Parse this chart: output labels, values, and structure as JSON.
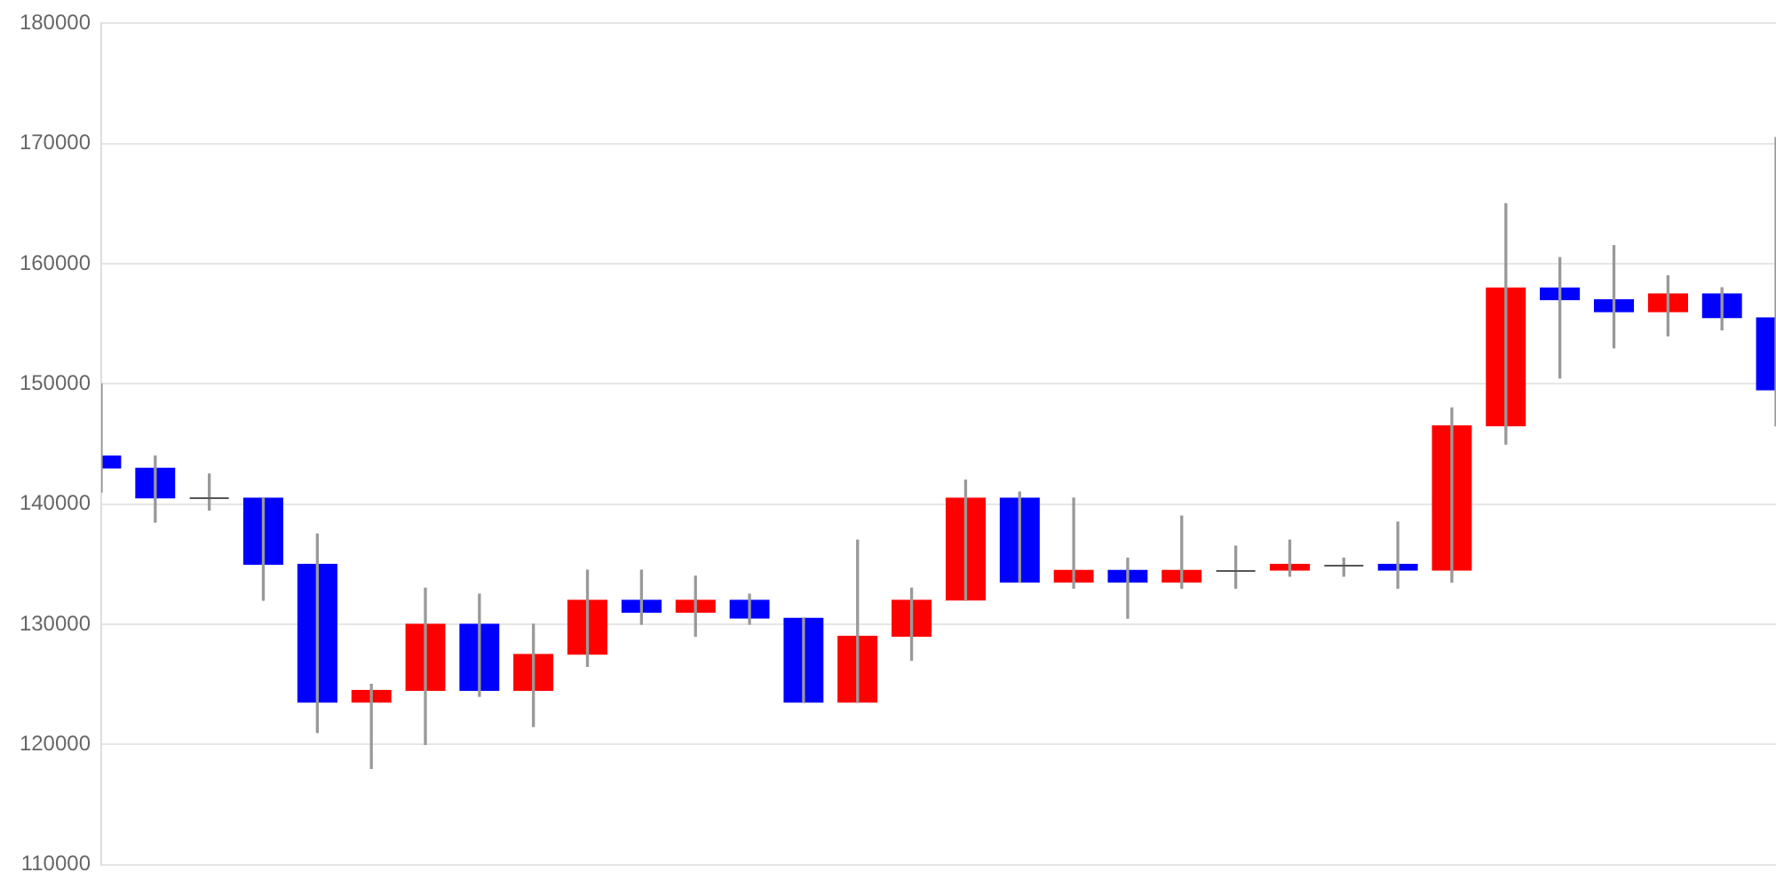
{
  "chart_data": {
    "type": "candlestick",
    "categories": [
      null,
      null,
      null,
      null,
      null,
      null,
      null,
      null,
      null,
      null,
      null,
      null,
      null,
      null,
      null,
      null,
      null,
      null,
      null,
      null,
      null,
      null,
      null,
      null,
      null,
      null,
      null,
      null,
      null,
      null,
      null,
      null
    ],
    "ohlc": [
      [
        144000,
        150000,
        141000,
        143000
      ],
      [
        143000,
        144000,
        138500,
        140500
      ],
      [
        140500,
        142500,
        139500,
        140500
      ],
      [
        140500,
        140500,
        132000,
        135000
      ],
      [
        135000,
        137500,
        121000,
        123500
      ],
      [
        123500,
        125000,
        118000,
        124500
      ],
      [
        124500,
        133000,
        120000,
        130000
      ],
      [
        130000,
        132500,
        124000,
        124500
      ],
      [
        124500,
        130000,
        121500,
        127500
      ],
      [
        127500,
        134500,
        126500,
        132000
      ],
      [
        132000,
        134500,
        130000,
        131000
      ],
      [
        131000,
        134000,
        129000,
        132000
      ],
      [
        132000,
        132500,
        130000,
        130500
      ],
      [
        130500,
        130500,
        123500,
        123500
      ],
      [
        123500,
        137000,
        123500,
        129000
      ],
      [
        129000,
        133000,
        127000,
        132000
      ],
      [
        132000,
        142000,
        132000,
        140500
      ],
      [
        140500,
        141000,
        133500,
        133500
      ],
      [
        133500,
        140500,
        133000,
        134500
      ],
      [
        134500,
        135500,
        130500,
        133500
      ],
      [
        133500,
        139000,
        133000,
        134500
      ],
      [
        134500,
        136500,
        133000,
        134500
      ],
      [
        134500,
        137000,
        134000,
        135000
      ],
      [
        135000,
        135500,
        134000,
        135000
      ],
      [
        135000,
        138500,
        133000,
        134500
      ],
      [
        134500,
        148000,
        133500,
        146500
      ],
      [
        146500,
        165000,
        145000,
        158000
      ],
      [
        158000,
        160500,
        150500,
        157000
      ],
      [
        157000,
        161500,
        153000,
        156000
      ],
      [
        156000,
        159000,
        154000,
        157500
      ],
      [
        157500,
        158000,
        154500,
        155500
      ],
      [
        155500,
        170500,
        146500,
        149500
      ]
    ],
    "colors": [
      "#0000ff",
      "#0000ff",
      "#555555",
      "#0000ff",
      "#0000ff",
      "#ff0000",
      "#ff0000",
      "#0000ff",
      "#ff0000",
      "#ff0000",
      "#0000ff",
      "#ff0000",
      "#0000ff",
      "#0000ff",
      "#ff0000",
      "#ff0000",
      "#ff0000",
      "#0000ff",
      "#ff0000",
      "#0000ff",
      "#ff0000",
      "#555555",
      "#ff0000",
      "#555555",
      "#0000ff",
      "#ff0000",
      "#ff0000",
      "#0000ff",
      "#0000ff",
      "#ff0000",
      "#0000ff",
      "#0000ff"
    ],
    "ylim": [
      110000,
      180000
    ],
    "yticks": [
      110000,
      120000,
      130000,
      140000,
      150000,
      160000,
      170000,
      180000
    ],
    "grid": "y",
    "legend": false
  }
}
